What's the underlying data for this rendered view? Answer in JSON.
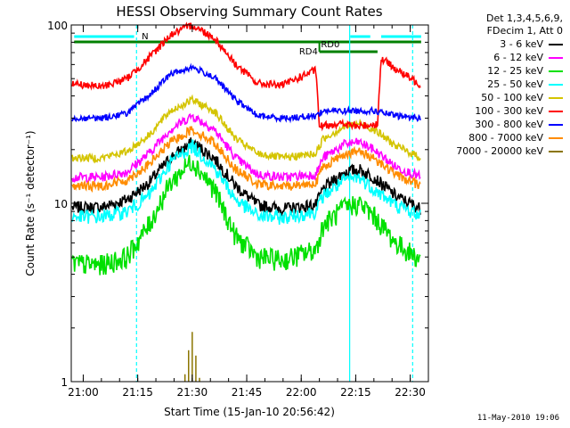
{
  "chart_data": {
    "type": "line",
    "title": "HESSI Observing Summary Count Rates",
    "xlabel": "Start Time (15-Jan-10 20:56:42)",
    "ylabel": "Count Rate (s⁻¹ detector⁻¹)",
    "yscale": "log",
    "ylim": [
      1,
      100
    ],
    "xlim": [
      "20:56:42",
      "22:35:00"
    ],
    "yticks": [
      "1",
      "10",
      "100"
    ],
    "xticks": [
      "21:00",
      "21:15",
      "21:30",
      "21:45",
      "22:00",
      "22:15",
      "22:30"
    ],
    "legend_header": [
      "Det 1,3,4,5,6,9,",
      "FDecim 1, Att 0"
    ],
    "series": [
      {
        "name": "3 - 6 keV",
        "color": "#000000",
        "x": [
          "20:57",
          "21:05",
          "21:12",
          "21:18",
          "21:24",
          "21:30",
          "21:36",
          "21:42",
          "21:48",
          "21:55",
          "22:04",
          "22:06",
          "22:12",
          "22:16",
          "22:20",
          "22:26",
          "22:33"
        ],
        "y": [
          9.5,
          9.5,
          10.5,
          13,
          18,
          22,
          18,
          12.5,
          9.8,
          9.3,
          9.8,
          12,
          15,
          15.5,
          14,
          11,
          9.3
        ]
      },
      {
        "name": "6 - 12 keV",
        "color": "#ff00ff",
        "x": [
          "20:57",
          "21:05",
          "21:12",
          "21:18",
          "21:24",
          "21:30",
          "21:36",
          "21:42",
          "21:48",
          "21:55",
          "22:04",
          "22:06",
          "22:12",
          "22:16",
          "22:20",
          "22:26",
          "22:33"
        ],
        "y": [
          14,
          14,
          15,
          19,
          26,
          31,
          26,
          18,
          14.5,
          14,
          14.5,
          18,
          21.5,
          22,
          20,
          16,
          14
        ]
      },
      {
        "name": "12 - 25 keV",
        "color": "#00e000",
        "x": [
          "20:57",
          "21:05",
          "21:12",
          "21:18",
          "21:24",
          "21:30",
          "21:36",
          "21:42",
          "21:48",
          "21:55",
          "22:04",
          "22:06",
          "22:12",
          "22:16",
          "22:20",
          "22:26",
          "22:33"
        ],
        "y": [
          4.6,
          4.5,
          5,
          7.5,
          13,
          17.5,
          12,
          6.5,
          5,
          4.8,
          5.5,
          7.5,
          9.5,
          10,
          8.5,
          6,
          4.8
        ]
      },
      {
        "name": "25 - 50 keV",
        "color": "#00ffff",
        "x": [
          "20:57",
          "21:05",
          "21:12",
          "21:18",
          "21:24",
          "21:30",
          "21:36",
          "21:42",
          "21:48",
          "21:55",
          "22:04",
          "22:06",
          "22:12",
          "22:16",
          "22:20",
          "22:26",
          "22:33"
        ],
        "y": [
          8.4,
          8.4,
          9,
          11,
          17,
          21,
          16,
          10.5,
          8.5,
          8.3,
          9,
          11,
          13.5,
          14,
          12,
          9.8,
          8.5
        ]
      },
      {
        "name": "50 - 100 keV",
        "color": "#d4c400",
        "x": [
          "20:57",
          "21:05",
          "21:12",
          "21:18",
          "21:24",
          "21:30",
          "21:36",
          "21:42",
          "21:48",
          "21:55",
          "22:04",
          "22:06",
          "22:12",
          "22:16",
          "22:20",
          "22:26",
          "22:33"
        ],
        "y": [
          18,
          18,
          19.5,
          24,
          33,
          38,
          33,
          23,
          19,
          18,
          19,
          23,
          27,
          28,
          26,
          21,
          18
        ]
      },
      {
        "name": "100 - 300 keV",
        "color": "#ff0000",
        "x": [
          "20:57",
          "21:05",
          "21:12",
          "21:18",
          "21:24",
          "21:30",
          "21:36",
          "21:42",
          "21:48",
          "21:55",
          "22:04",
          "22:05",
          "22:10",
          "22:16",
          "22:21",
          "22:22",
          "22:27",
          "22:33"
        ],
        "y": [
          47,
          45,
          50,
          65,
          88,
          100,
          85,
          60,
          47,
          46,
          56,
          27,
          28,
          27,
          28,
          65,
          55,
          46
        ]
      },
      {
        "name": "300 - 800 keV",
        "color": "#0000ff",
        "x": [
          "20:57",
          "21:05",
          "21:12",
          "21:18",
          "21:24",
          "21:30",
          "21:36",
          "21:42",
          "21:48",
          "21:55",
          "22:04",
          "22:06",
          "22:12",
          "22:16",
          "22:20",
          "22:26",
          "22:33"
        ],
        "y": [
          30,
          30,
          32,
          40,
          53,
          58,
          51,
          38,
          31,
          30,
          31,
          33,
          33,
          33,
          33,
          31,
          30
        ]
      },
      {
        "name": "800 - 7000 keV",
        "color": "#ff8c00",
        "x": [
          "20:57",
          "21:05",
          "21:12",
          "21:18",
          "21:24",
          "21:30",
          "21:36",
          "21:42",
          "21:48",
          "21:55",
          "22:04",
          "22:06",
          "22:12",
          "22:16",
          "22:20",
          "22:26",
          "22:33"
        ],
        "y": [
          12.5,
          12.5,
          13.5,
          16.5,
          22,
          26,
          22,
          15.5,
          12.8,
          12.4,
          13,
          16,
          19,
          19.5,
          18,
          14.5,
          12.5
        ]
      },
      {
        "name": "7000 - 20000 keV",
        "color": "#8b7500",
        "x": [
          "21:28",
          "21:29",
          "21:30",
          "21:31",
          "21:32"
        ],
        "y": [
          1.1,
          1.5,
          1.9,
          1.4,
          1.05
        ]
      }
    ],
    "annotations": [
      {
        "text": "N",
        "color": "#00ffff"
      },
      {
        "text": "RD0",
        "color": "#008000"
      },
      {
        "text": "RD4",
        "color": "#008000"
      }
    ],
    "grid": false,
    "legend_position": "right"
  },
  "timestamp": "11-May-2010 19:06"
}
